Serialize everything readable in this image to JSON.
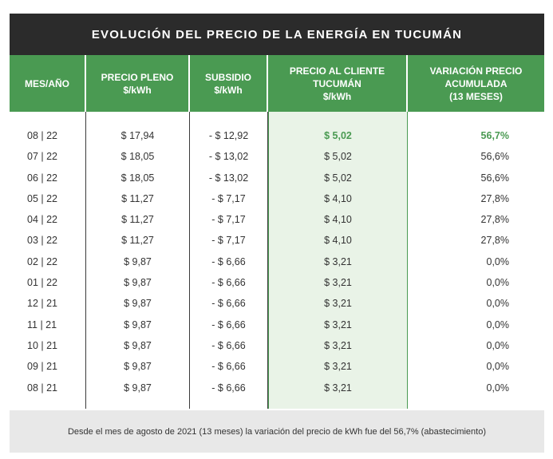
{
  "title": "EVOLUCIÓN DEL PRECIO DE LA ENERGÍA EN TUCUMÁN",
  "headers": [
    {
      "lines": [
        "MES/AÑO"
      ]
    },
    {
      "lines": [
        "PRECIO PLENO",
        "$/kWh"
      ]
    },
    {
      "lines": [
        "SUBSIDIO",
        "$/kWh"
      ]
    },
    {
      "lines": [
        "PRECIO AL CLIENTE",
        "TUCUMÁN",
        "$/kWh"
      ]
    },
    {
      "lines": [
        "VARIACIÓN PRECIO",
        "ACUMULADA",
        "(13 MESES)"
      ]
    }
  ],
  "rows": [
    {
      "mes": "08 | 22",
      "pleno": "$ 17,94",
      "subsidio": "- $ 12,92",
      "cliente": "$ 5,02",
      "variacion": "56,7%",
      "highlight": true
    },
    {
      "mes": "07 | 22",
      "pleno": "$ 18,05",
      "subsidio": "- $ 13,02",
      "cliente": "$ 5,02",
      "variacion": "56,6%"
    },
    {
      "mes": "06 | 22",
      "pleno": "$ 18,05",
      "subsidio": "- $ 13,02",
      "cliente": "$ 5,02",
      "variacion": "56,6%"
    },
    {
      "mes": "05 | 22",
      "pleno": "$ 11,27",
      "subsidio": "- $ 7,17",
      "cliente": "$ 4,10",
      "variacion": "27,8%"
    },
    {
      "mes": "04 | 22",
      "pleno": "$ 11,27",
      "subsidio": "- $ 7,17",
      "cliente": "$ 4,10",
      "variacion": "27,8%"
    },
    {
      "mes": "03 | 22",
      "pleno": "$ 11,27",
      "subsidio": "- $ 7,17",
      "cliente": "$ 4,10",
      "variacion": "27,8%"
    },
    {
      "mes": "02 | 22",
      "pleno": "$ 9,87",
      "subsidio": "- $ 6,66",
      "cliente": "$ 3,21",
      "variacion": "0,0%"
    },
    {
      "mes": "01 | 22",
      "pleno": "$ 9,87",
      "subsidio": "- $ 6,66",
      "cliente": "$ 3,21",
      "variacion": "0,0%"
    },
    {
      "mes": "12 | 21",
      "pleno": "$ 9,87",
      "subsidio": "- $ 6,66",
      "cliente": "$ 3,21",
      "variacion": "0,0%"
    },
    {
      "mes": "11 | 21",
      "pleno": "$ 9,87",
      "subsidio": "- $ 6,66",
      "cliente": "$ 3,21",
      "variacion": "0,0%"
    },
    {
      "mes": "10 | 21",
      "pleno": "$ 9,87",
      "subsidio": "- $ 6,66",
      "cliente": "$ 3,21",
      "variacion": "0,0%"
    },
    {
      "mes": "09 | 21",
      "pleno": "$ 9,87",
      "subsidio": "- $ 6,66",
      "cliente": "$ 3,21",
      "variacion": "0,0%"
    },
    {
      "mes": "08 | 21",
      "pleno": "$ 9,87",
      "subsidio": "- $ 6,66",
      "cliente": "$ 3,21",
      "variacion": "0,0%"
    }
  ],
  "note": "Desde el mes de agosto de 2021 (13 meses) la variación del precio de kWh fue del 56,7% (abastecimiento)",
  "colors": {
    "title_bg": "#2b2b2b",
    "header_bg": "#4a9a52",
    "highlight_col_bg": "#e9f3e7",
    "highlight_text": "#4a9a52",
    "note_bg": "#e8e8e8"
  }
}
